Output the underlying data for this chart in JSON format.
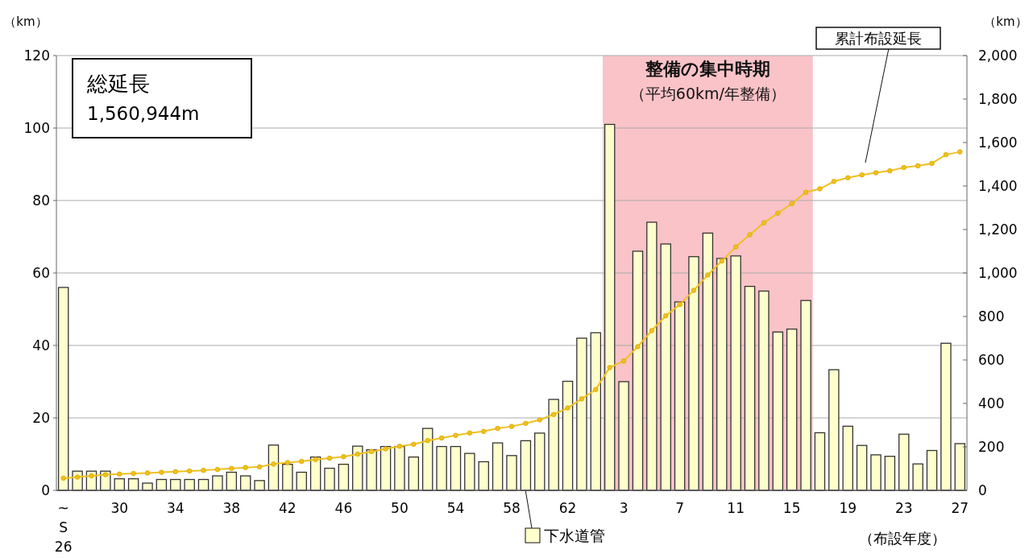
{
  "chart_data": {
    "type": "bar",
    "xlabel": "（布設年度）",
    "ylabel": "（km）",
    "y2label": "（km）",
    "categories": [
      "~\nS\n26",
      null,
      null,
      null,
      "30",
      null,
      null,
      null,
      "34",
      null,
      null,
      null,
      "38",
      null,
      null,
      null,
      "42",
      null,
      null,
      null,
      "46",
      null,
      null,
      null,
      "50",
      null,
      null,
      null,
      "54",
      null,
      null,
      null,
      "58",
      null,
      null,
      null,
      "62",
      null,
      null,
      null,
      "3",
      null,
      null,
      null,
      "7",
      null,
      null,
      null,
      "11",
      null,
      null,
      null,
      "15",
      null,
      null,
      null,
      "19",
      null,
      null,
      null,
      "23",
      null,
      null,
      null,
      "27"
    ],
    "series": [
      {
        "name": "下水道管",
        "color": "#ffffcc",
        "values": [
          56,
          5.3,
          5.3,
          5.3,
          3.2,
          3.2,
          2,
          3,
          3,
          3,
          3,
          4,
          5,
          4,
          2.7,
          12.5,
          7.2,
          5,
          9.2,
          6.1,
          7.2,
          12.2,
          11.2,
          12.1,
          12.1,
          9.2,
          17.1,
          12.1,
          12.1,
          10.2,
          7.9,
          13.1,
          9.6,
          13.7,
          15.8,
          25.1,
          30.1,
          42,
          43.5,
          101,
          30,
          66,
          74,
          68,
          52,
          64.5,
          71,
          64,
          64.7,
          56.3,
          55,
          43.7,
          44.5,
          52.4,
          15.9,
          33.3,
          17.7,
          12.4,
          9.8,
          9.4,
          15.5,
          7.3,
          11,
          40.6,
          12.9
        ]
      },
      {
        "name": "累計布設延長",
        "type": "line",
        "axis": "y2",
        "color": "#f0c020",
        "values": [
          56,
          61,
          67,
          72,
          75,
          78,
          80,
          83,
          86,
          89,
          92,
          96,
          101,
          105,
          108,
          121,
          128,
          133,
          142,
          148,
          155,
          167,
          179,
          191,
          203,
          212,
          229,
          241,
          253,
          264,
          271,
          285,
          294,
          308,
          324,
          349,
          379,
          421,
          464,
          565,
          595,
          661,
          735,
          803,
          855,
          920,
          991,
          1055,
          1120,
          1176,
          1231,
          1275,
          1319,
          1371,
          1387,
          1421,
          1438,
          1451,
          1461,
          1470,
          1485,
          1493,
          1504,
          1544,
          1557
        ]
      }
    ],
    "ylim": [
      0,
      120
    ],
    "yticks": [
      0,
      20,
      40,
      60,
      80,
      100,
      120
    ],
    "y2lim": [
      0,
      2000
    ],
    "y2ticks": [
      0,
      200,
      400,
      600,
      800,
      {
        "value": 1000,
        "label": "1,000"
      },
      {
        "value": 1200,
        "label": "1,200"
      },
      {
        "value": 1400,
        "label": "1,400"
      },
      {
        "value": 1600,
        "label": "1,600"
      },
      {
        "value": 1800,
        "label": "1,800"
      },
      {
        "value": 2000,
        "label": "2,000"
      }
    ],
    "annotations": [
      "総延長\n1,560,944m",
      "整備の集中時期（平均60km/年整備）"
    ],
    "grid": "y",
    "legend": "bottom",
    "marker": "circle"
  }
}
